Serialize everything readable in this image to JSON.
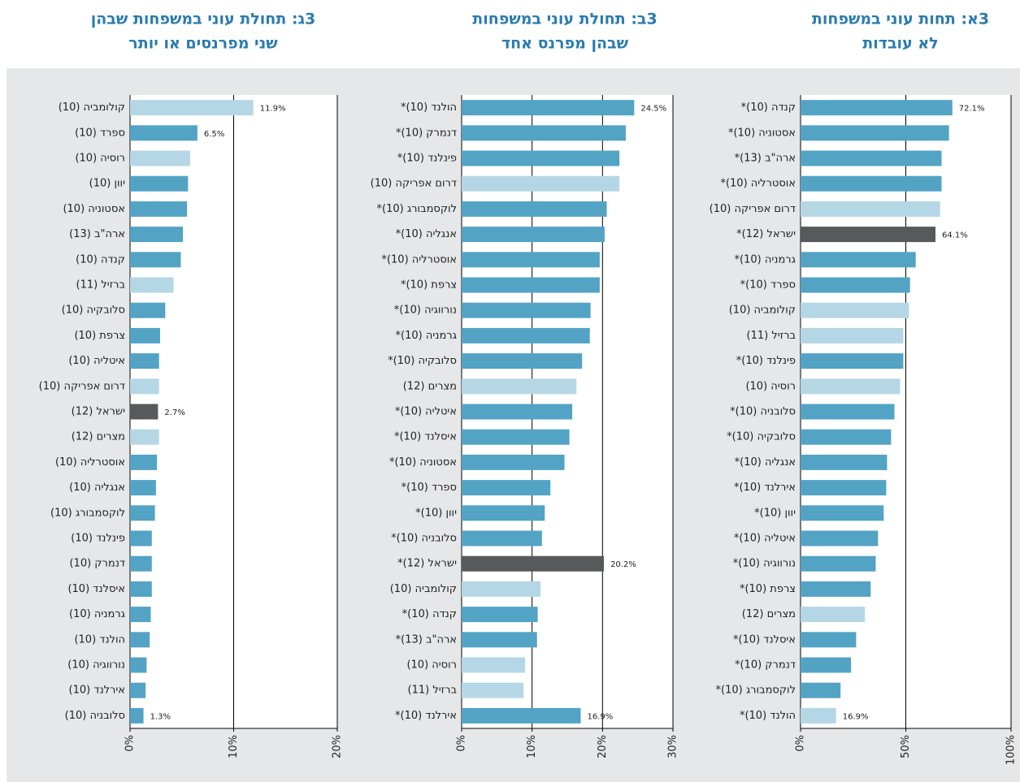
{
  "chart_data": [
    {
      "type": "bar",
      "horizontal": true,
      "title": [
        "3א: תחות עוני במשפחות",
        "לא עובדות"
      ],
      "categories": [
        "קנדה (10)*",
        "אסטוניה (10)*",
        "ארה\"ב (13)*",
        "אוסטרליה (10)*",
        "דרום אפריקה (10)",
        "ישראל (12)*",
        "גרמניה (10)*",
        "ספרד (10)*",
        "קולומביה (10)",
        "ברזיל (11)",
        "פינלנד (10)*",
        "רוסיה (10)",
        "סלובניה (10)*",
        "סלובקיה (10)*",
        "אנגליה (10)*",
        "אירלנד (10)*",
        "יוון (10)*",
        "איטליה (10)*",
        "נורווגיה (10)*",
        "צרפת (10)*",
        "מצרים (12)",
        "איסלנד (10)*",
        "דנמרק (10)*",
        "לוקסמבורג (10)*",
        "הולנד (10)*"
      ],
      "values": [
        72.1,
        70.5,
        67,
        67,
        66.3,
        64.1,
        54.7,
        52,
        51.5,
        48.8,
        48.8,
        47.3,
        44.6,
        43,
        41.1,
        40.7,
        39.5,
        36.8,
        35.7,
        33.3,
        30.6,
        26.4,
        24,
        19,
        16.9
      ],
      "value_labels": [
        "72.1%",
        null,
        null,
        null,
        null,
        "64.1%",
        null,
        null,
        null,
        null,
        null,
        null,
        null,
        null,
        null,
        null,
        null,
        null,
        null,
        null,
        null,
        null,
        null,
        null,
        "16.9%"
      ],
      "colors": [
        "#53a3c5",
        "#53a3c5",
        "#53a3c5",
        "#53a3c5",
        "#b5d7e5",
        "#58595b",
        "#53a3c5",
        "#53a3c5",
        "#b5d7e5",
        "#b5d7e5",
        "#53a3c5",
        "#b5d7e5",
        "#53a3c5",
        "#53a3c5",
        "#53a3c5",
        "#53a3c5",
        "#53a3c5",
        "#53a3c5",
        "#53a3c5",
        "#53a3c5",
        "#b5d7e5",
        "#53a3c5",
        "#53a3c5",
        "#53a3c5",
        "#b5d7e5"
      ],
      "xlim": [
        0,
        100
      ],
      "xticks": [
        {
          "value": 0,
          "label": "0%"
        },
        {
          "value": 50,
          "label": "50%"
        },
        {
          "value": 100,
          "label": "100%"
        }
      ],
      "grid": true
    },
    {
      "type": "bar",
      "horizontal": true,
      "title": [
        "3ב: תחולת עוני במשפחות",
        "שבהן מפרנס אחד"
      ],
      "categories": [
        "הולנד (10)*",
        "דנמרק (10)*",
        "פינלנד (10)*",
        "דרום אפריקה (10)",
        "לוקסמבורג (10)*",
        "אנגליה (10)*",
        "אוסטרליה (10)*",
        "צרפת (10)*",
        "נורווגיה (10)*",
        "גרמניה (10)*",
        "סלובקיה (10)*",
        "מצרים (12)",
        "איטליה (10)*",
        "איסלנד (10)*",
        "אסטוניה (10)*",
        "ספרד (10)*",
        "יוון (10)*",
        "סלובניה (10)*",
        "ישראל (12)*",
        "קולומביה (10)",
        "קנדה (10)*",
        "ארה\"ב (13)*",
        "רוסיה (10)",
        "ברזיל (11)",
        "אירלנד (10)*"
      ],
      "values": [
        24.5,
        23.3,
        22.4,
        22.4,
        20.6,
        20.3,
        19.6,
        19.6,
        18.3,
        18.2,
        17.1,
        16.3,
        15.7,
        15.3,
        14.6,
        12.6,
        11.8,
        11.4,
        20.2,
        11.2,
        10.8,
        10.7,
        9,
        8.8,
        16.9
      ],
      "value_labels": [
        "24.5%",
        null,
        null,
        null,
        null,
        null,
        null,
        null,
        null,
        null,
        null,
        null,
        null,
        null,
        null,
        null,
        null,
        null,
        "20.2%",
        null,
        null,
        null,
        null,
        null,
        "16.9%"
      ],
      "colors": [
        "#53a3c5",
        "#53a3c5",
        "#53a3c5",
        "#b5d7e5",
        "#53a3c5",
        "#53a3c5",
        "#53a3c5",
        "#53a3c5",
        "#53a3c5",
        "#53a3c5",
        "#53a3c5",
        "#b5d7e5",
        "#53a3c5",
        "#53a3c5",
        "#53a3c5",
        "#53a3c5",
        "#53a3c5",
        "#53a3c5",
        "#58595b",
        "#b5d7e5",
        "#53a3c5",
        "#53a3c5",
        "#b5d7e5",
        "#b5d7e5",
        "#53a3c5"
      ],
      "xlim": [
        0,
        30
      ],
      "xticks": [
        {
          "value": 0,
          "label": "0%"
        },
        {
          "value": 10,
          "label": "10%"
        },
        {
          "value": 20,
          "label": "20%"
        },
        {
          "value": 30,
          "label": "30%"
        }
      ],
      "grid": true
    },
    {
      "type": "bar",
      "horizontal": true,
      "title": [
        "3ג: תחולת עוני במשפחות שבהן",
        "שני מפרנסים או יותר"
      ],
      "categories": [
        "קולומביה (10)",
        "ספרד (10)",
        "רוסיה (10)",
        "יוון (10)",
        "אסטוניה (10)",
        "ארה\"ב (13)",
        "קנדה (10)",
        "ברזיל (11)",
        "סלובקיה (10)",
        "צרפת (10)",
        "איטליה (10)",
        "דרום אפריקה (10)",
        "ישראל (12)",
        "מצרים (12)",
        "אוסטרליה (10)",
        "אנגליה (10)",
        "לוקסמבורג (10)",
        "פינלנד (10)",
        "דנמרק (10)",
        "איסלנד (10)",
        "גרמניה (10)",
        "הולנד (10)",
        "נורווגיה (10)",
        "אירלנד (10)",
        "סלובניה (10)"
      ],
      "values": [
        11.9,
        6.5,
        5.8,
        5.6,
        5.5,
        5.1,
        4.9,
        4.2,
        3.4,
        2.9,
        2.8,
        2.8,
        2.7,
        2.8,
        2.6,
        2.5,
        2.4,
        2.1,
        2.1,
        2.1,
        2,
        1.9,
        1.6,
        1.5,
        1.3
      ],
      "value_labels": [
        "11.9%",
        "6.5%",
        null,
        null,
        null,
        null,
        null,
        null,
        null,
        null,
        null,
        null,
        "2.7%",
        null,
        null,
        null,
        null,
        null,
        null,
        null,
        null,
        null,
        null,
        null,
        "1.3%"
      ],
      "colors": [
        "#b5d7e5",
        "#53a3c5",
        "#b5d7e5",
        "#53a3c5",
        "#53a3c5",
        "#53a3c5",
        "#53a3c5",
        "#b5d7e5",
        "#53a3c5",
        "#53a3c5",
        "#53a3c5",
        "#b5d7e5",
        "#58595b",
        "#b5d7e5",
        "#53a3c5",
        "#53a3c5",
        "#53a3c5",
        "#53a3c5",
        "#53a3c5",
        "#53a3c5",
        "#53a3c5",
        "#53a3c5",
        "#53a3c5",
        "#53a3c5",
        "#53a3c5"
      ],
      "xlim": [
        0,
        20
      ],
      "xticks": [
        {
          "value": 0,
          "label": "0%"
        },
        {
          "value": 10,
          "label": "10%"
        },
        {
          "value": 20,
          "label": "20%"
        }
      ],
      "grid": true
    }
  ]
}
